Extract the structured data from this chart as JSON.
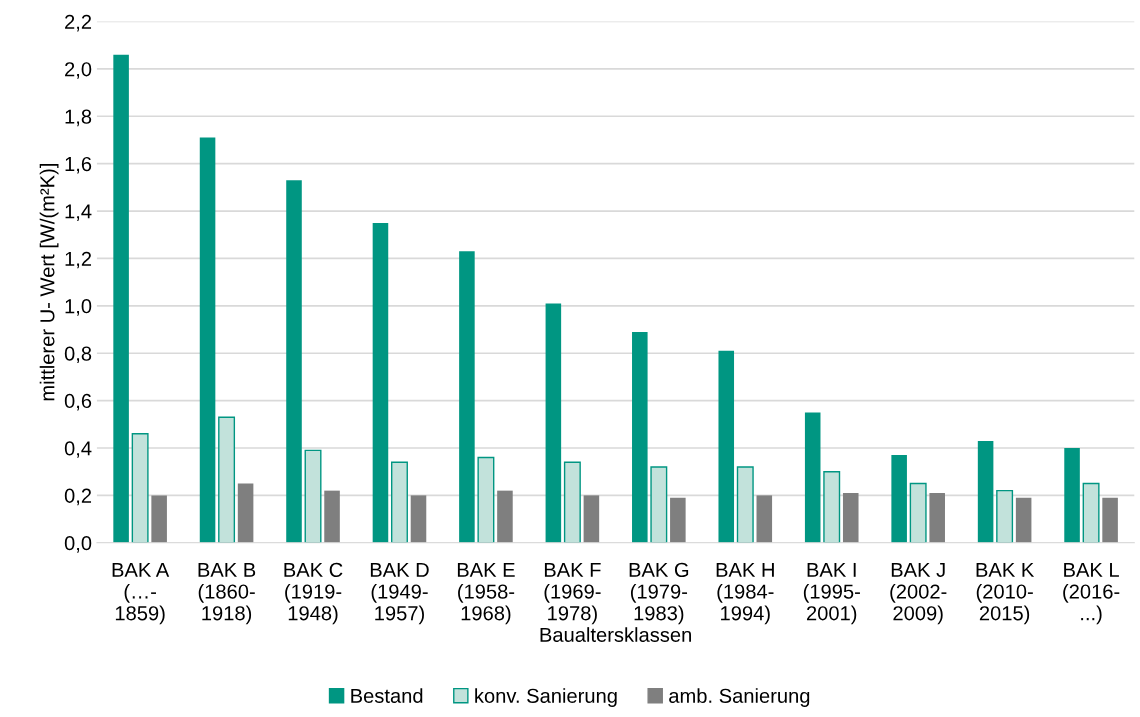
{
  "chart_data": {
    "type": "bar",
    "xlabel": "Baualtersklassen",
    "ylabel": "mittlerer U- Wert [W/(m²K)]",
    "categories": [
      "BAK A\n(…-\n1859)",
      "BAK B\n(1860-\n1918)",
      "BAK C\n(1919-\n1948)",
      "BAK D\n(1949-\n1957)",
      "BAK E\n(1958-\n1968)",
      "BAK F\n(1969-\n1978)",
      "BAK G\n(1979-\n1983)",
      "BAK H\n(1984-\n1994)",
      "BAK I\n(1995-\n2001)",
      "BAK J\n(2002-\n2009)",
      "BAK K\n(2010-\n2015)",
      "BAK L\n(2016-\n...)"
    ],
    "series": [
      {
        "name": "Bestand",
        "color": "#009682",
        "values": [
          2.06,
          1.71,
          1.53,
          1.35,
          1.23,
          1.01,
          0.89,
          0.81,
          0.55,
          0.37,
          0.43,
          0.4
        ]
      },
      {
        "name": "konv. Sanierung",
        "color": "#c2e2db",
        "values": [
          0.46,
          0.53,
          0.39,
          0.34,
          0.36,
          0.34,
          0.32,
          0.32,
          0.3,
          0.25,
          0.22,
          0.25
        ]
      },
      {
        "name": "amb. Sanierung",
        "color": "#7f7f7f",
        "values": [
          0.2,
          0.25,
          0.22,
          0.2,
          0.22,
          0.2,
          0.19,
          0.2,
          0.21,
          0.21,
          0.19,
          0.19
        ]
      }
    ],
    "ylim": [
      0,
      2.2
    ],
    "yticks": [
      {
        "value": 0,
        "label": "0,0"
      },
      {
        "value": 0.2,
        "label": "0,2"
      },
      {
        "value": 0.4,
        "label": "0,4"
      },
      {
        "value": 0.6,
        "label": "0,6"
      },
      {
        "value": 0.8,
        "label": "0,8"
      },
      {
        "value": 1.0,
        "label": "1,0"
      },
      {
        "value": 1.2,
        "label": "1,2"
      },
      {
        "value": 1.4,
        "label": "1,4"
      },
      {
        "value": 1.6,
        "label": "1,6"
      },
      {
        "value": 1.8,
        "label": "1,8"
      },
      {
        "value": 2.0,
        "label": "2,0"
      },
      {
        "value": 2.2,
        "label": "2,2"
      }
    ],
    "grid": "y",
    "legend": "bottom"
  }
}
